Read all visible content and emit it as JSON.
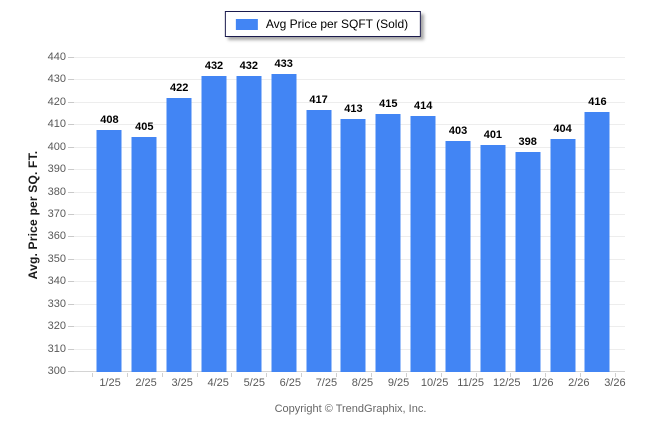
{
  "legend": {
    "label": "Avg Price per SQFT (Sold)"
  },
  "y_axis_title": "Avg. Price per SQ. FT.",
  "footer": {
    "copyright": "Copyright © TrendGraphix, Inc."
  },
  "colors": {
    "bar": "#4285f4",
    "grid": "#ededed",
    "axis": "#d4d4d4",
    "tick_text": "#595959",
    "value_label": "#000000",
    "legend_border": "#1b1b4d"
  },
  "chart_data": {
    "type": "bar",
    "title": "Avg Price per SQFT (Sold)",
    "categories": [
      "1/25",
      "2/25",
      "3/25",
      "4/25",
      "5/25",
      "6/25",
      "7/25",
      "8/25",
      "9/25",
      "10/25",
      "11/25",
      "12/25",
      "1/26",
      "2/26",
      "3/26"
    ],
    "values": [
      408,
      405,
      422,
      432,
      432,
      433,
      417,
      413,
      415,
      414,
      403,
      401,
      398,
      404,
      416
    ],
    "xlabel": "",
    "ylabel": "Avg. Price per SQ. FT.",
    "ylim": [
      300,
      440
    ],
    "ytick_step": 10,
    "grid": true,
    "value_labels": true,
    "legend_position": "top-center",
    "legend_entries": [
      "Avg Price per SQFT (Sold)"
    ]
  }
}
